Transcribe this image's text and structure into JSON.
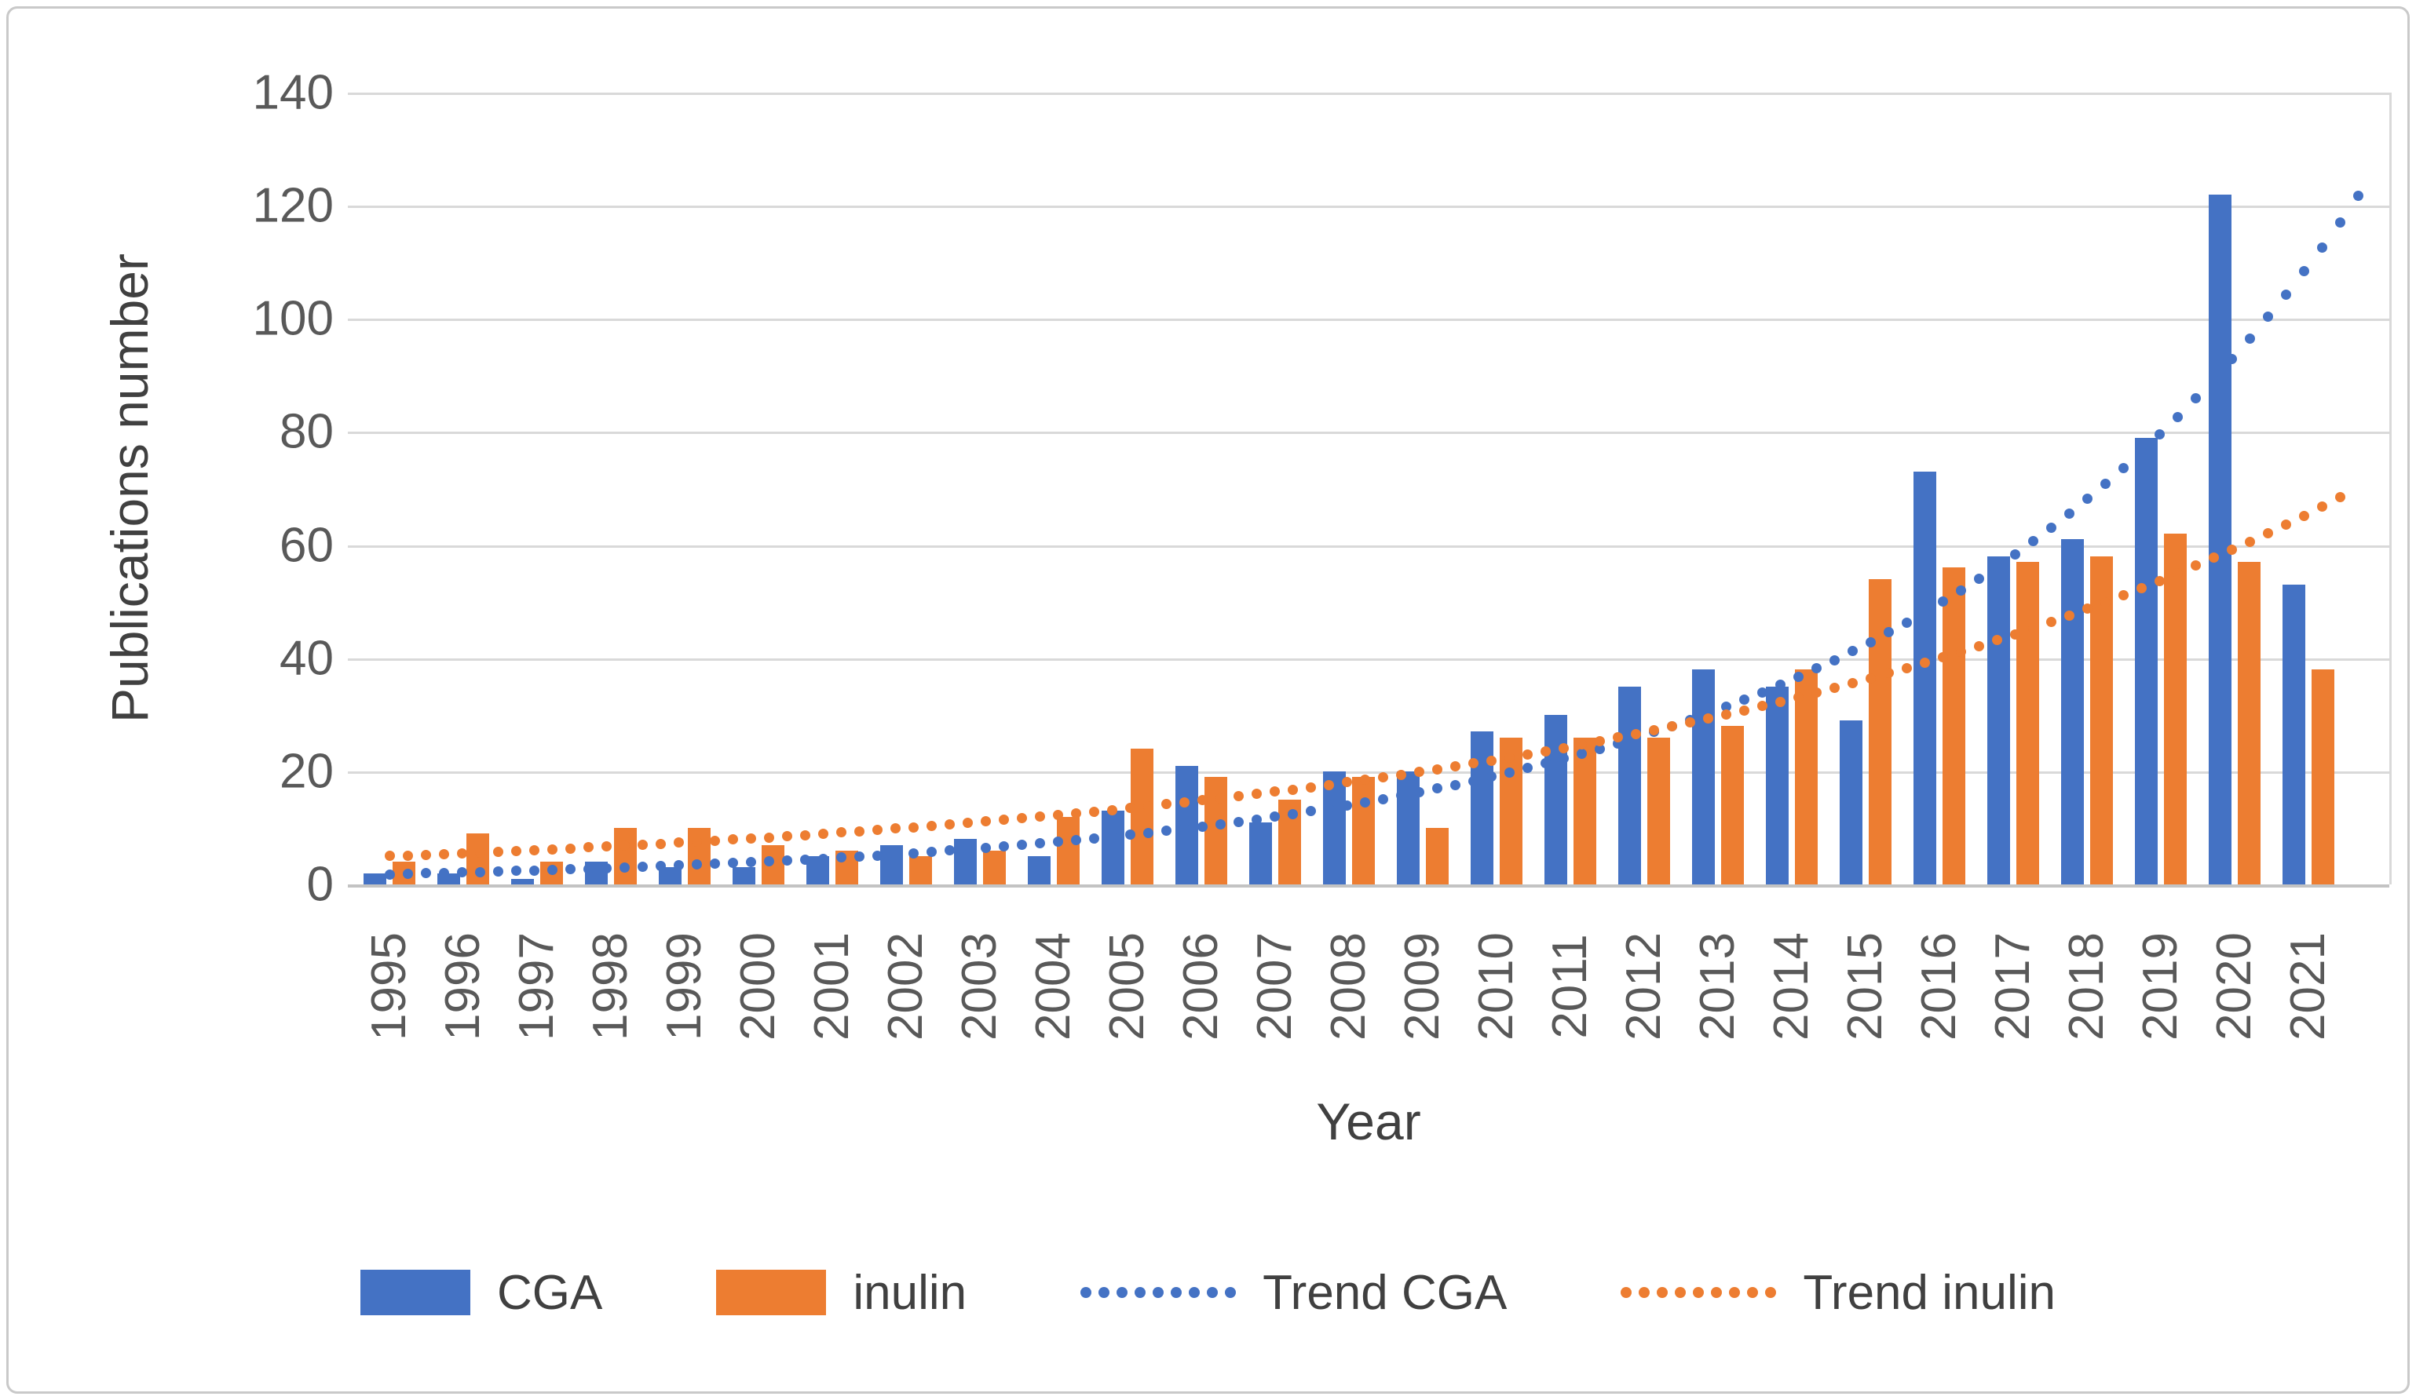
{
  "chart": {
    "y_axis": {
      "title": "Publications number",
      "ticks": [
        0,
        20,
        40,
        60,
        80,
        100,
        120,
        140
      ]
    },
    "x_axis": {
      "title": "Year"
    },
    "legend": [
      {
        "key": "cga",
        "label": "CGA",
        "type": "box",
        "color": "#4472C4"
      },
      {
        "key": "inulin",
        "label": "inulin",
        "type": "box",
        "color": "#ED7D31"
      },
      {
        "key": "trend-cga",
        "label": "Trend CGA",
        "type": "dots",
        "color": "#4472C4"
      },
      {
        "key": "trend-inulin",
        "label": "Trend inulin",
        "type": "dots",
        "color": "#ED7D31"
      }
    ]
  },
  "chart_data": {
    "type": "bar",
    "title": "",
    "xlabel": "Year",
    "ylabel": "Publications number",
    "ylim": [
      0,
      140
    ],
    "grid": true,
    "legend_position": "bottom",
    "categories": [
      "1995",
      "1996",
      "1997",
      "1998",
      "1999",
      "2000",
      "2001",
      "2002",
      "2003",
      "2004",
      "2005",
      "2006",
      "2007",
      "2008",
      "2009",
      "2010",
      "2011",
      "2012",
      "2013",
      "2014",
      "2015",
      "2016",
      "2017",
      "2018",
      "2019",
      "2020",
      "2021"
    ],
    "series": [
      {
        "name": "CGA",
        "color": "#4472C4",
        "values": [
          2,
          2,
          1,
          4,
          3,
          3,
          5,
          7,
          8,
          5,
          13,
          21,
          11,
          20,
          20,
          27,
          30,
          35,
          38,
          35,
          29,
          73,
          58,
          61,
          79,
          122,
          53
        ]
      },
      {
        "name": "inulin",
        "color": "#ED7D31",
        "values": [
          4,
          9,
          4,
          10,
          10,
          7,
          6,
          5,
          6,
          12,
          24,
          19,
          15,
          19,
          10,
          26,
          26,
          26,
          28,
          38,
          54,
          56,
          57,
          58,
          62,
          57,
          38
        ]
      }
    ],
    "trend_series": [
      {
        "name": "Trend CGA",
        "color": "#4472C4",
        "style": "dotted",
        "exp_fit": {
          "a": 1.8,
          "b": 0.158
        },
        "t_end_years": 26.7,
        "values_by_year": [
          1.8,
          2.1,
          2.5,
          2.9,
          3.4,
          4.0,
          4.6,
          5.4,
          6.4,
          7.4,
          8.7,
          10.2,
          12.0,
          14.0,
          16.4,
          19.3,
          22.6,
          26.4,
          31.0,
          36.3,
          42.5,
          49.8,
          58.3,
          68.3,
          80.0,
          93.7,
          109.8
        ]
      },
      {
        "name": "Trend inulin",
        "color": "#ED7D31",
        "style": "dotted",
        "exp_fit": {
          "a": 5.0,
          "b": 0.099
        },
        "t_end_years": 26.5,
        "values_by_year": [
          5.0,
          5.5,
          6.1,
          6.7,
          7.4,
          8.2,
          9.1,
          10.0,
          11.0,
          12.2,
          13.5,
          14.9,
          16.4,
          18.1,
          20.0,
          22.1,
          24.4,
          26.9,
          29.7,
          32.8,
          36.2,
          40.0,
          44.2,
          48.8,
          53.8,
          59.4,
          65.6
        ]
      }
    ]
  }
}
